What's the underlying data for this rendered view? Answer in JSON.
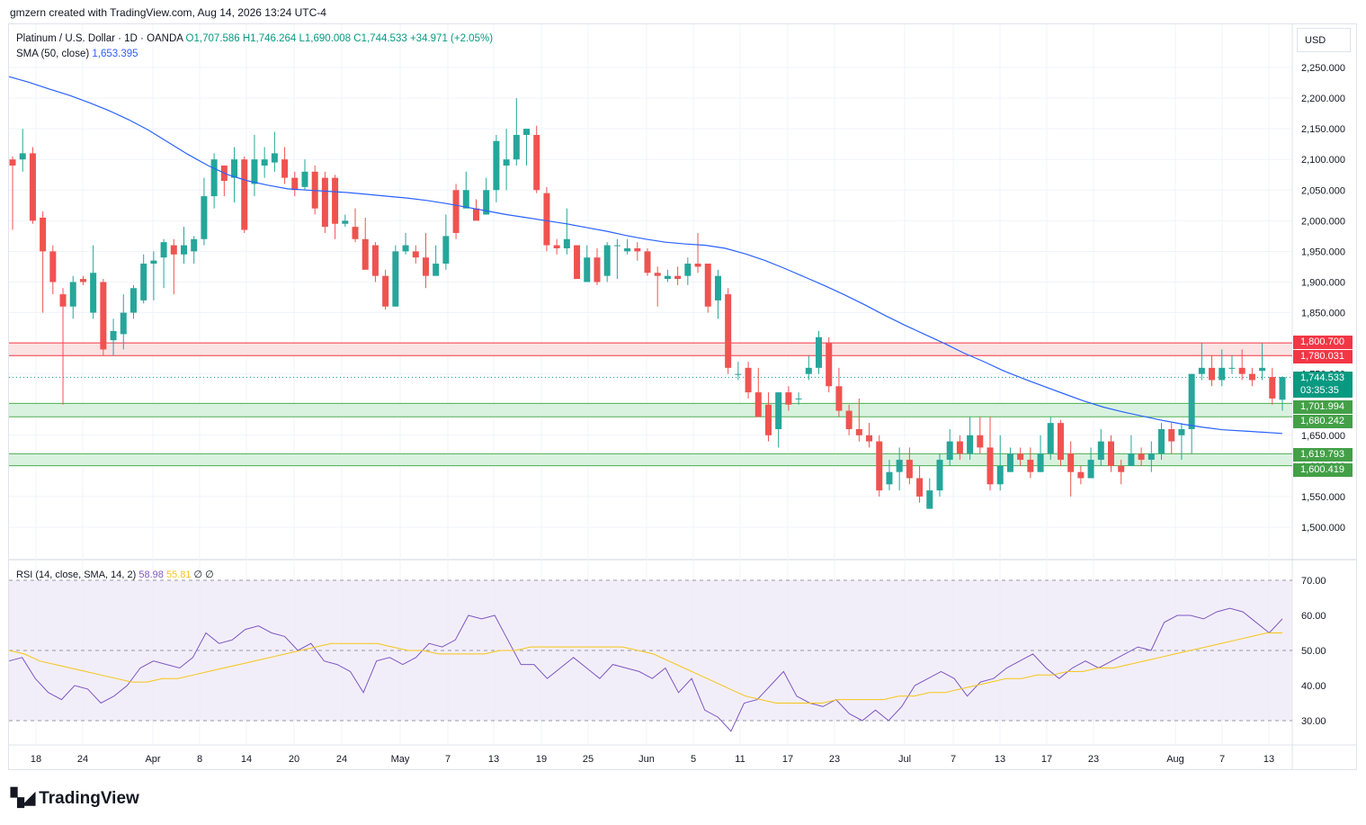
{
  "header": {
    "credit": "gmzern created with TradingView.com, Aug 14, 2026 13:24 UTC-4"
  },
  "legend": {
    "symbol": "Platinum / U.S. Dollar · 1D · OANDA",
    "open": "O1,707.586",
    "high": "H1,746.264",
    "low": "L1,690.008",
    "close": "C1,744.533",
    "change": "+34.971 (+2.05%)",
    "sma_name": "SMA (50, close)",
    "sma_value": "1,653.395"
  },
  "rsi_legend": {
    "name": "RSI (14, close, SMA, 14, 2)",
    "value": "58.98",
    "ma_value": "55.81",
    "extra": "∅ ∅"
  },
  "axis": {
    "currency": "USD"
  },
  "tags": {
    "resist_top": "1,800.700",
    "resist_bottom": "1,780.031",
    "last_price": "1,744.533",
    "countdown": "03:35:35",
    "support1_top": "1,701.994",
    "support1_bottom": "1,680.242",
    "support2_top": "1,619.793",
    "support2_bottom": "1,600.419"
  },
  "colors": {
    "up": "#26a69a",
    "down": "#ef5350",
    "sma": "#2962ff",
    "rsi": "#7e57c2",
    "rsi_ma": "#f5c518",
    "resist_fill": "#fbe3e3",
    "resist_line": "#f23645",
    "support_fill": "#d9f2df",
    "support_line": "#4caf50"
  },
  "footer": {
    "brand": "TradingView",
    "logo_icon": "tradingview-logo-icon"
  },
  "chart_data": {
    "type": "candlestick",
    "title": "Platinum / U.S. Dollar · 1D · OANDA",
    "price_axis": {
      "min": 1500,
      "max": 2250,
      "ticks": [
        "2,250.000",
        "2,200.000",
        "2,150.000",
        "2,100.000",
        "2,050.000",
        "2,000.000",
        "1,950.000",
        "1,900.000",
        "1,850.000",
        "1,800.000",
        "1,750.000",
        "1,700.000",
        "1,650.000",
        "1,600.000",
        "1,550.000",
        "1,500.000"
      ]
    },
    "time_axis": {
      "labels": [
        "18",
        "24",
        "Apr",
        "8",
        "14",
        "20",
        "24",
        "May",
        "7",
        "13",
        "19",
        "25",
        "Jun",
        "5",
        "11",
        "17",
        "23",
        "Jul",
        "7",
        "13",
        "17",
        "23",
        "Aug",
        "7",
        "13"
      ]
    },
    "candles": [
      [
        2100,
        2090,
        2105,
        1985
      ],
      [
        2100,
        2110,
        2150,
        2080
      ],
      [
        2110,
        2000,
        2120,
        1995
      ],
      [
        2005,
        1950,
        2015,
        1850
      ],
      [
        1950,
        1900,
        1960,
        1880
      ],
      [
        1880,
        1860,
        1890,
        1700
      ],
      [
        1860,
        1900,
        1910,
        1840
      ],
      [
        1905,
        1900,
        1910,
        1895
      ],
      [
        1850,
        1915,
        1960,
        1840
      ],
      [
        1900,
        1790,
        1905,
        1780
      ],
      [
        1805,
        1820,
        1840,
        1780
      ],
      [
        1815,
        1850,
        1880,
        1790
      ],
      [
        1850,
        1890,
        1895,
        1840
      ],
      [
        1870,
        1930,
        1945,
        1865
      ],
      [
        1930,
        1935,
        1950,
        1870
      ],
      [
        1940,
        1965,
        1970,
        1890
      ],
      [
        1960,
        1945,
        1970,
        1880
      ],
      [
        1945,
        1960,
        1990,
        1930
      ],
      [
        1950,
        1970,
        1975,
        1930
      ],
      [
        1970,
        2040,
        2070,
        1960
      ],
      [
        2040,
        2100,
        2110,
        2020
      ],
      [
        2090,
        2065,
        2070,
        2040
      ],
      [
        2070,
        2100,
        2120,
        2030
      ],
      [
        2100,
        1985,
        2105,
        1980
      ],
      [
        2060,
        2100,
        2140,
        2040
      ],
      [
        2090,
        2100,
        2120,
        2070
      ],
      [
        2095,
        2110,
        2145,
        2080
      ],
      [
        2100,
        2070,
        2120,
        2060
      ],
      [
        2070,
        2050,
        2080,
        2040
      ],
      [
        2055,
        2080,
        2100,
        2050
      ],
      [
        2080,
        2020,
        2090,
        2010
      ],
      [
        2070,
        1990,
        2080,
        1980
      ],
      [
        2070,
        1995,
        2075,
        1970
      ],
      [
        1995,
        2000,
        2010,
        1990
      ],
      [
        1990,
        1970,
        2020,
        1965
      ],
      [
        1970,
        1920,
        2005,
        1955
      ],
      [
        1960,
        1910,
        1965,
        1900
      ],
      [
        1910,
        1860,
        1920,
        1855
      ],
      [
        1860,
        1950,
        1960,
        1860
      ],
      [
        1950,
        1960,
        1980,
        1945
      ],
      [
        1950,
        1940,
        1960,
        1930
      ],
      [
        1940,
        1910,
        1980,
        1890
      ],
      [
        1910,
        1930,
        1960,
        1920
      ],
      [
        1930,
        1975,
        2010,
        1920
      ],
      [
        2050,
        1980,
        2060,
        1970
      ],
      [
        2020,
        2050,
        2080,
        2030
      ],
      [
        2020,
        2000,
        2035,
        2010
      ],
      [
        2010,
        2050,
        2070,
        2010
      ],
      [
        2050,
        2130,
        2140,
        2030
      ],
      [
        2090,
        2100,
        2150,
        2050
      ],
      [
        2100,
        2140,
        2200,
        2090
      ],
      [
        2140,
        2150,
        2150,
        2090
      ],
      [
        2140,
        2050,
        2155,
        2045
      ],
      [
        2045,
        1960,
        2055,
        1950
      ],
      [
        1960,
        1955,
        1970,
        1945
      ],
      [
        1955,
        1970,
        2020,
        1945
      ],
      [
        1960,
        1905,
        1960,
        1905
      ],
      [
        1900,
        1940,
        1960,
        1900
      ],
      [
        1940,
        1900,
        1955,
        1895
      ],
      [
        1910,
        1960,
        1965,
        1900
      ],
      [
        1960,
        1960,
        1970,
        1905
      ],
      [
        1950,
        1955,
        1970,
        1945
      ],
      [
        1955,
        1950,
        1965,
        1935
      ],
      [
        1950,
        1915,
        1955,
        1910
      ],
      [
        1915,
        1910,
        1925,
        1860
      ],
      [
        1905,
        1910,
        1920,
        1900
      ],
      [
        1910,
        1905,
        1925,
        1895
      ],
      [
        1910,
        1930,
        1940,
        1895
      ],
      [
        1930,
        1925,
        1980,
        1915
      ],
      [
        1930,
        1860,
        1930,
        1850
      ],
      [
        1870,
        1910,
        1920,
        1840
      ],
      [
        1880,
        1760,
        1890,
        1750
      ],
      [
        1750,
        1750,
        1770,
        1740
      ],
      [
        1760,
        1720,
        1770,
        1710
      ],
      [
        1720,
        1680,
        1760,
        1680
      ],
      [
        1700,
        1650,
        1720,
        1640
      ],
      [
        1660,
        1720,
        1720,
        1630
      ],
      [
        1720,
        1700,
        1730,
        1690
      ],
      [
        1710,
        1710,
        1720,
        1700
      ],
      [
        1750,
        1760,
        1780,
        1740
      ],
      [
        1760,
        1810,
        1820,
        1750
      ],
      [
        1800,
        1730,
        1810,
        1720
      ],
      [
        1730,
        1690,
        1760,
        1680
      ],
      [
        1690,
        1660,
        1700,
        1650
      ],
      [
        1660,
        1650,
        1710,
        1640
      ],
      [
        1650,
        1640,
        1670,
        1630
      ],
      [
        1640,
        1560,
        1650,
        1550
      ],
      [
        1570,
        1590,
        1610,
        1560
      ],
      [
        1590,
        1610,
        1630,
        1560
      ],
      [
        1610,
        1580,
        1630,
        1570
      ],
      [
        1580,
        1550,
        1600,
        1540
      ],
      [
        1530,
        1560,
        1580,
        1530
      ],
      [
        1560,
        1610,
        1620,
        1550
      ],
      [
        1610,
        1640,
        1660,
        1600
      ],
      [
        1640,
        1620,
        1650,
        1610
      ],
      [
        1620,
        1650,
        1680,
        1610
      ],
      [
        1650,
        1630,
        1680,
        1620
      ],
      [
        1630,
        1570,
        1680,
        1560
      ],
      [
        1570,
        1600,
        1650,
        1560
      ],
      [
        1590,
        1620,
        1630,
        1590
      ],
      [
        1620,
        1610,
        1630,
        1600
      ],
      [
        1610,
        1590,
        1630,
        1580
      ],
      [
        1590,
        1620,
        1650,
        1590
      ],
      [
        1620,
        1670,
        1680,
        1610
      ],
      [
        1670,
        1610,
        1675,
        1600
      ],
      [
        1620,
        1590,
        1640,
        1550
      ],
      [
        1590,
        1580,
        1600,
        1570
      ],
      [
        1580,
        1610,
        1630,
        1580
      ],
      [
        1610,
        1640,
        1660,
        1600
      ],
      [
        1640,
        1600,
        1650,
        1590
      ],
      [
        1600,
        1590,
        1610,
        1570
      ],
      [
        1600,
        1620,
        1650,
        1600
      ],
      [
        1620,
        1610,
        1630,
        1600
      ],
      [
        1610,
        1620,
        1640,
        1590
      ],
      [
        1620,
        1660,
        1670,
        1610
      ],
      [
        1660,
        1640,
        1670,
        1620
      ],
      [
        1650,
        1660,
        1670,
        1610
      ],
      [
        1660,
        1750,
        1750,
        1620
      ],
      [
        1750,
        1760,
        1800,
        1740
      ],
      [
        1760,
        1740,
        1780,
        1730
      ],
      [
        1740,
        1760,
        1790,
        1730
      ],
      [
        1760,
        1760,
        1780,
        1750
      ],
      [
        1760,
        1750,
        1790,
        1740
      ],
      [
        1750,
        1740,
        1760,
        1730
      ],
      [
        1755,
        1760,
        1800,
        1740
      ],
      [
        1745,
        1710,
        1760,
        1700
      ],
      [
        1708,
        1745,
        1746,
        1690
      ]
    ],
    "sma_50": [
      2235,
      2226,
      2215,
      2205,
      2193,
      2180,
      2165,
      2148,
      2128,
      2108,
      2090,
      2075,
      2065,
      2058,
      2052,
      2050,
      2048,
      2046,
      2043,
      2040,
      2037,
      2033,
      2028,
      2022,
      2016,
      2010,
      2005,
      2000,
      1995,
      1989,
      1983,
      1976,
      1970,
      1965,
      1962,
      1960,
      1955,
      1946,
      1935,
      1922,
      1908,
      1894,
      1879,
      1863,
      1846,
      1830,
      1815,
      1800,
      1784,
      1770,
      1755,
      1742,
      1730,
      1718,
      1706,
      1696,
      1688,
      1681,
      1674,
      1668,
      1663,
      1659,
      1657,
      1655,
      1653
    ],
    "rsi": {
      "axis": {
        "min": 30,
        "max": 70,
        "ticks": [
          "70.00",
          "60.00",
          "50.00",
          "40.00",
          "30.00"
        ]
      },
      "levels": {
        "upper": 70,
        "middle": 50,
        "lower": 30
      },
      "values": [
        47,
        48,
        42,
        38,
        36,
        40,
        39,
        35,
        37,
        40,
        45,
        47,
        46,
        45,
        48,
        55,
        52,
        53,
        56,
        57,
        55,
        54,
        50,
        52,
        47,
        46,
        44,
        38,
        47,
        48,
        46,
        48,
        52,
        51,
        53,
        60,
        59,
        60,
        53,
        46,
        46,
        42,
        45,
        48,
        45,
        42,
        46,
        45,
        44,
        42,
        45,
        38,
        42,
        33,
        31,
        27,
        35,
        36,
        40,
        44,
        37,
        35,
        34,
        36,
        32,
        30,
        33,
        30,
        34,
        40,
        42,
        44,
        42,
        37,
        41,
        42,
        45,
        47,
        49,
        45,
        42,
        45,
        47,
        45,
        47,
        49,
        51,
        50,
        58,
        60,
        60,
        59,
        61,
        62,
        61,
        58,
        55,
        59
      ],
      "ma": [
        50,
        49,
        47,
        46,
        45,
        44,
        43,
        42,
        41,
        41,
        42,
        42,
        43,
        44,
        45,
        46,
        47,
        48,
        49,
        50,
        51,
        52,
        52,
        52,
        52,
        51,
        50,
        50,
        49,
        49,
        49,
        49,
        50,
        50,
        51,
        51,
        51,
        51,
        51,
        51,
        51,
        50,
        49,
        47,
        45,
        43,
        41,
        39,
        37,
        36,
        35,
        35,
        35,
        35,
        36,
        36,
        36,
        36,
        37,
        37,
        38,
        38,
        39,
        40,
        41,
        42,
        42,
        43,
        43,
        44,
        44,
        45,
        45,
        46,
        47,
        48,
        49,
        50,
        51,
        52,
        53,
        54,
        55,
        55
      ]
    }
  }
}
